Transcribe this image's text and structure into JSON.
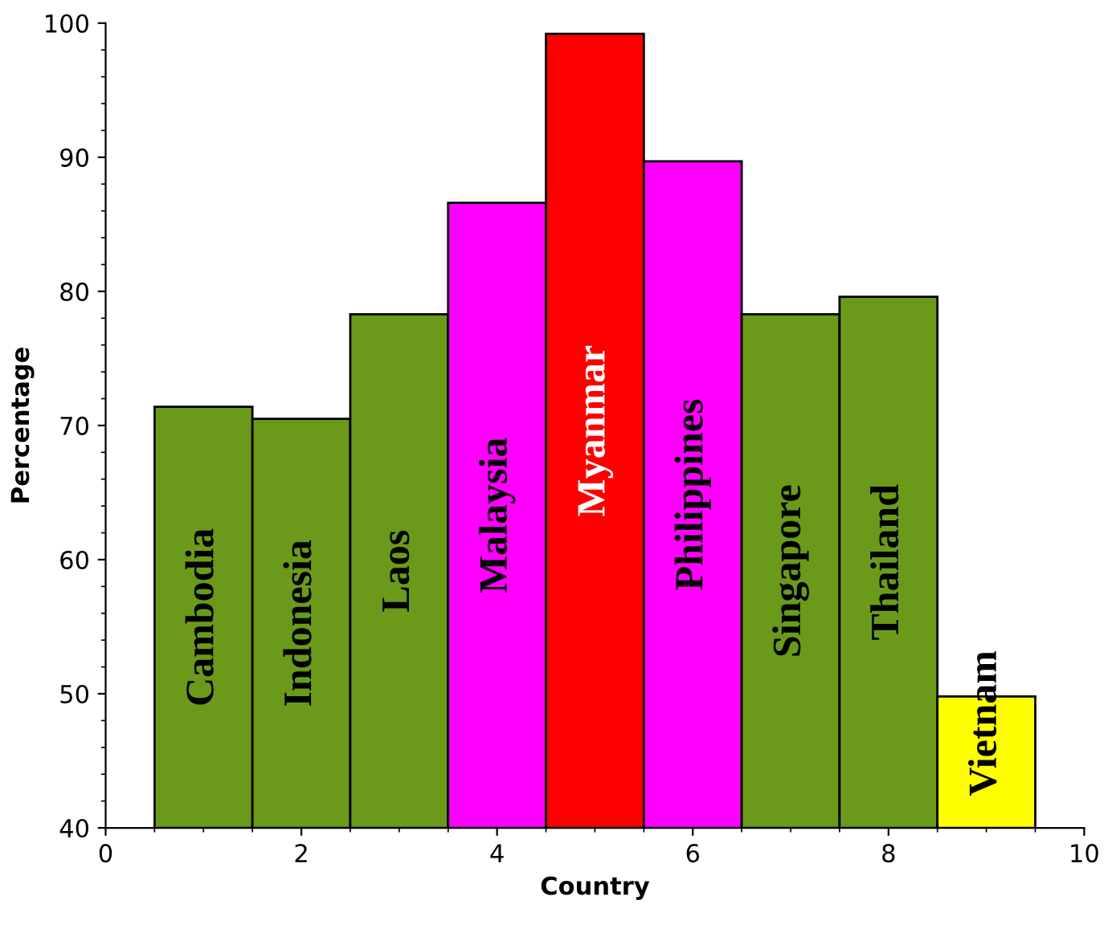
{
  "chart_data": {
    "type": "bar",
    "xlabel": "Country",
    "ylabel": "Percentage",
    "series": [
      {
        "name": "Cambodia",
        "color": "#6b9a1a",
        "x": [
          1
        ],
        "values": [
          71.4
        ]
      },
      {
        "name": "Indonesia",
        "color": "#6b9a1a",
        "x": [
          2
        ],
        "values": [
          70.5
        ]
      },
      {
        "name": "Laos",
        "color": "#6b9a1a",
        "x": [
          3
        ],
        "values": [
          78.3
        ]
      },
      {
        "name": "Malaysia",
        "color": "#ff00ff",
        "x": [
          4
        ],
        "values": [
          86.6
        ]
      },
      {
        "name": "Myanmar",
        "color": "#ff0000",
        "x": [
          5
        ],
        "values": [
          99.2
        ]
      },
      {
        "name": "Philippines",
        "color": "#ff00ff",
        "x": [
          6
        ],
        "values": [
          89.7
        ]
      },
      {
        "name": "Singapore",
        "color": "#6b9a1a",
        "x": [
          7
        ],
        "values": [
          78.3
        ]
      },
      {
        "name": "Thailand",
        "color": "#6b9a1a",
        "x": [
          8
        ],
        "values": [
          79.6
        ]
      },
      {
        "name": "Vietnam",
        "color": "#ffff00",
        "x": [
          9
        ],
        "values": [
          49.8
        ]
      }
    ],
    "xlim": [
      0,
      10
    ],
    "xticks": [
      0,
      2,
      4,
      6,
      8,
      10
    ],
    "ylim": [
      40,
      100
    ],
    "yticks": [
      40,
      50,
      60,
      70,
      80,
      90,
      100
    ],
    "grid": false,
    "legend": false
  }
}
